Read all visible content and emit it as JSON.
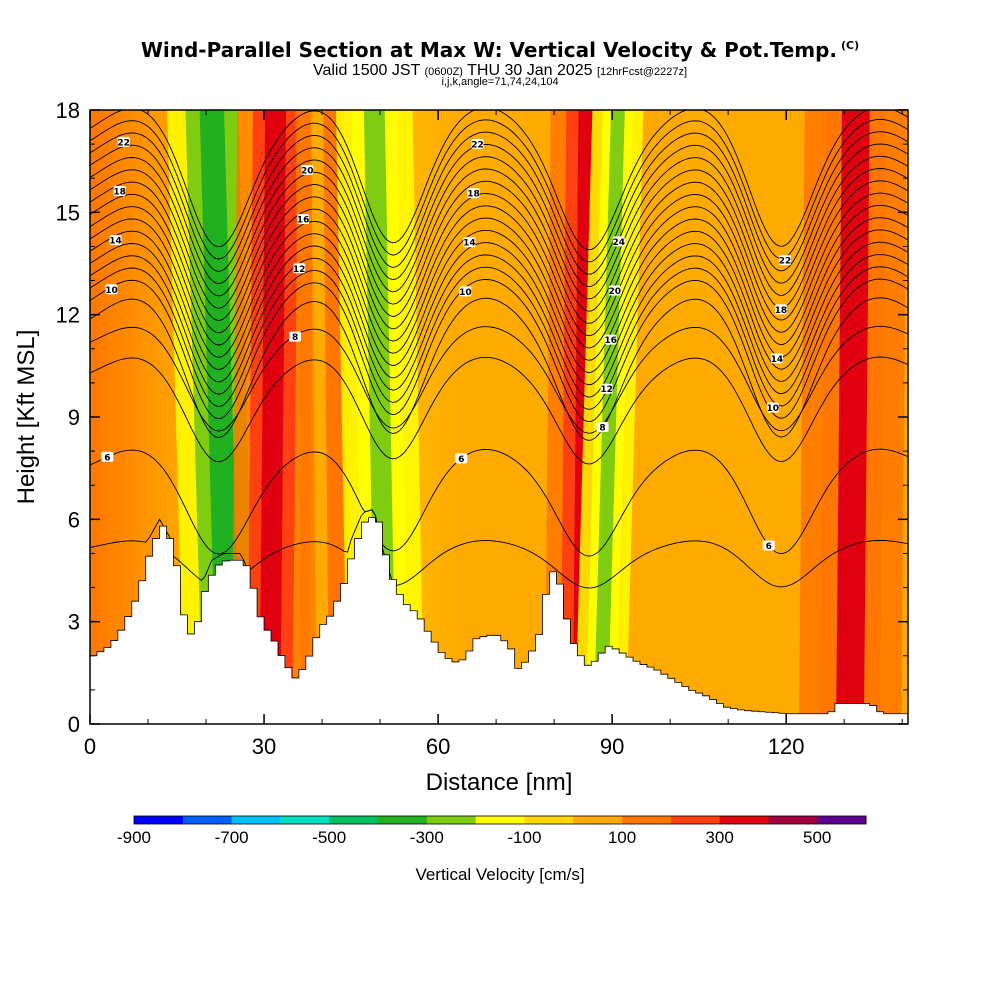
{
  "header": {
    "title": "Wind-Parallel Section at Max W: Vertical Velocity & Pot.Temp.",
    "copyright": "(C)",
    "valid_prefix": "Valid 1500 JST",
    "valid_utc": "(0600Z)",
    "valid_date": "THU 30 Jan 2025",
    "forecast": "[12hrFcst@2227z]",
    "indices": "i,j,k,angle=71,74,24,104"
  },
  "chart_data": {
    "type": "heatmap",
    "xlabel": "Distance [nm]",
    "ylabel": "Height [Kft MSL]",
    "xlim": [
      0,
      141
    ],
    "ylim": [
      0,
      18
    ],
    "xticks": [
      "0",
      "30",
      "60",
      "90",
      "120"
    ],
    "xtick_values": [
      0,
      30,
      60,
      90,
      120
    ],
    "yticks": [
      "0",
      "3",
      "6",
      "9",
      "12",
      "15",
      "18"
    ],
    "ytick_values": [
      0,
      3,
      6,
      9,
      12,
      15,
      18
    ],
    "colorbar": {
      "label": "Vertical Velocity [cm/s]",
      "colors": [
        "#0000ff",
        "#0060ff",
        "#00c0ff",
        "#00e0c0",
        "#00c060",
        "#20b020",
        "#80cc10",
        "#ffff00",
        "#ffd800",
        "#ffaa00",
        "#ff7700",
        "#ff4010",
        "#e00010",
        "#a00040",
        "#600090"
      ],
      "tick_labels": [
        "-900",
        "-700",
        "-500",
        "-300",
        "-100",
        "100",
        "300",
        "500"
      ],
      "tick_values": [
        -900,
        -700,
        -500,
        -300,
        -100,
        100,
        300,
        500
      ]
    },
    "terrain": [
      [
        0,
        2
      ],
      [
        3,
        2.3
      ],
      [
        5,
        2.8
      ],
      [
        7,
        3.5
      ],
      [
        9,
        4.5
      ],
      [
        10,
        5.2
      ],
      [
        12,
        5.8
      ],
      [
        14,
        5.2
      ],
      [
        15,
        3.8
      ],
      [
        16,
        2.8
      ],
      [
        17,
        2.6
      ],
      [
        18,
        3.0
      ],
      [
        19,
        3.8
      ],
      [
        21,
        4.6
      ],
      [
        23,
        4.8
      ],
      [
        26,
        4.8
      ],
      [
        27,
        4.4
      ],
      [
        29,
        3.0
      ],
      [
        31,
        2.5
      ],
      [
        33,
        1.8
      ],
      [
        35,
        1.3
      ],
      [
        37,
        1.9
      ],
      [
        39,
        2.8
      ],
      [
        41,
        3.2
      ],
      [
        43,
        4.0
      ],
      [
        45,
        5.2
      ],
      [
        47,
        6.0
      ],
      [
        49,
        6.1
      ],
      [
        50,
        5.2
      ],
      [
        52,
        4.0
      ],
      [
        54,
        3.5
      ],
      [
        56,
        3.2
      ],
      [
        58,
        2.6
      ],
      [
        60,
        2.1
      ],
      [
        62,
        1.8
      ],
      [
        64,
        1.9
      ],
      [
        66,
        2.5
      ],
      [
        68,
        2.6
      ],
      [
        70,
        2.6
      ],
      [
        72,
        2.2
      ],
      [
        73,
        1.6
      ],
      [
        75,
        1.9
      ],
      [
        77,
        2.7
      ],
      [
        78,
        3.8
      ],
      [
        79,
        4.5
      ],
      [
        80,
        4.3
      ],
      [
        81,
        3.8
      ],
      [
        82,
        2.6
      ],
      [
        84,
        2.0
      ],
      [
        85,
        1.7
      ],
      [
        87,
        1.9
      ],
      [
        88,
        2.2
      ],
      [
        89,
        2.3
      ],
      [
        91,
        2.1
      ],
      [
        94,
        1.8
      ],
      [
        97,
        1.6
      ],
      [
        100,
        1.3
      ],
      [
        103,
        1.0
      ],
      [
        106,
        0.8
      ],
      [
        109,
        0.5
      ],
      [
        112,
        0.4
      ],
      [
        120,
        0.3
      ],
      [
        127,
        0.3
      ],
      [
        128,
        0.6
      ],
      [
        134,
        0.6
      ],
      [
        136,
        0.3
      ],
      [
        141,
        0.3
      ]
    ],
    "updraft_bands": [
      {
        "label": "downdraft",
        "value": -350,
        "x_base": 24,
        "x_top": 21,
        "width": 3.5
      },
      {
        "label": "updraft",
        "value": 350,
        "x_base": 31,
        "x_top": 32,
        "width": 3
      },
      {
        "label": "updraft",
        "value": 150,
        "x_base": 43,
        "x_top": 42,
        "width": 3
      },
      {
        "label": "downdraft",
        "value": -250,
        "x_base": 51,
        "x_top": 49,
        "width": 3
      },
      {
        "label": "updraft",
        "value": 350,
        "x_base": 85,
        "x_top": 86,
        "width": 3
      },
      {
        "label": "downdraft",
        "value": -250,
        "x_base": 88,
        "x_top": 91,
        "width": 2
      },
      {
        "label": "updraft",
        "value": 300,
        "x_base": 131,
        "x_top": 132,
        "width": 4
      }
    ],
    "contour_labels": [
      "6",
      "8",
      "10",
      "12",
      "14",
      "16",
      "18",
      "20",
      "22",
      "24"
    ],
    "contours": {
      "levels": [
        5,
        6,
        7,
        8,
        9,
        10,
        11,
        12,
        13,
        14,
        15,
        16,
        17,
        18,
        19,
        20,
        21,
        22,
        23,
        24
      ],
      "wave_amplitude_ft": 1.6,
      "trough_x": [
        22,
        52,
        86,
        119
      ],
      "crest_x": [
        8,
        40,
        68,
        105,
        136
      ]
    }
  }
}
